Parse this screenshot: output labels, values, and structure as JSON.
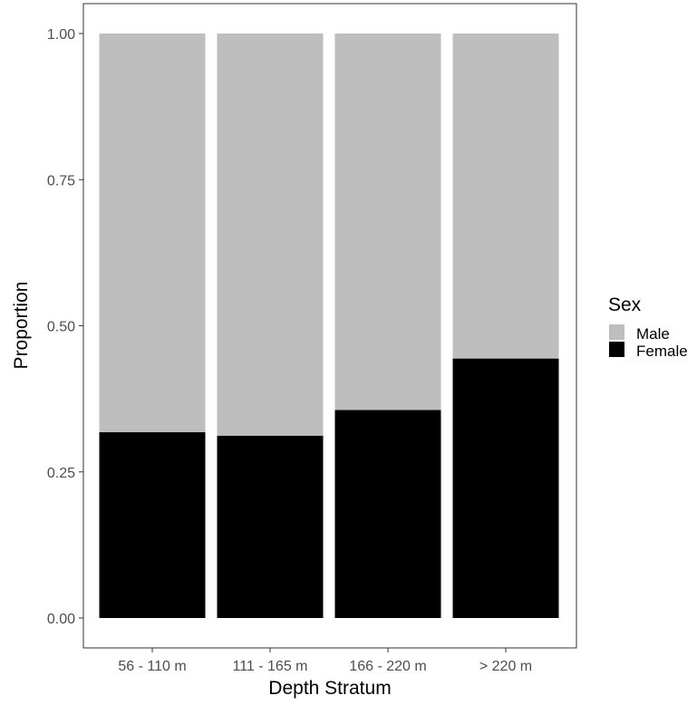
{
  "chart_data": {
    "type": "bar",
    "stacked": true,
    "normalized": true,
    "categories": [
      "56 - 110 m",
      "111 - 165 m",
      "166 - 220 m",
      "> 220 m"
    ],
    "series": [
      {
        "name": "Female",
        "values": [
          0.318,
          0.312,
          0.356,
          0.444
        ],
        "color": "#000000"
      },
      {
        "name": "Male",
        "values": [
          0.682,
          0.688,
          0.644,
          0.556
        ],
        "color": "#bebebe"
      }
    ],
    "xlabel": "Depth Stratum",
    "ylabel": "Proportion",
    "ylim": [
      0,
      1
    ],
    "yticks": [
      0,
      0.25,
      0.5,
      0.75,
      1
    ],
    "ytick_labels": [
      "0.00",
      "0.25",
      "0.50",
      "0.75",
      "1.00"
    ],
    "grid": false,
    "legend": {
      "title": "Sex",
      "position": "right",
      "entries": [
        {
          "label": "Male",
          "color": "#bebebe"
        },
        {
          "label": "Female",
          "color": "#000000"
        }
      ]
    }
  }
}
